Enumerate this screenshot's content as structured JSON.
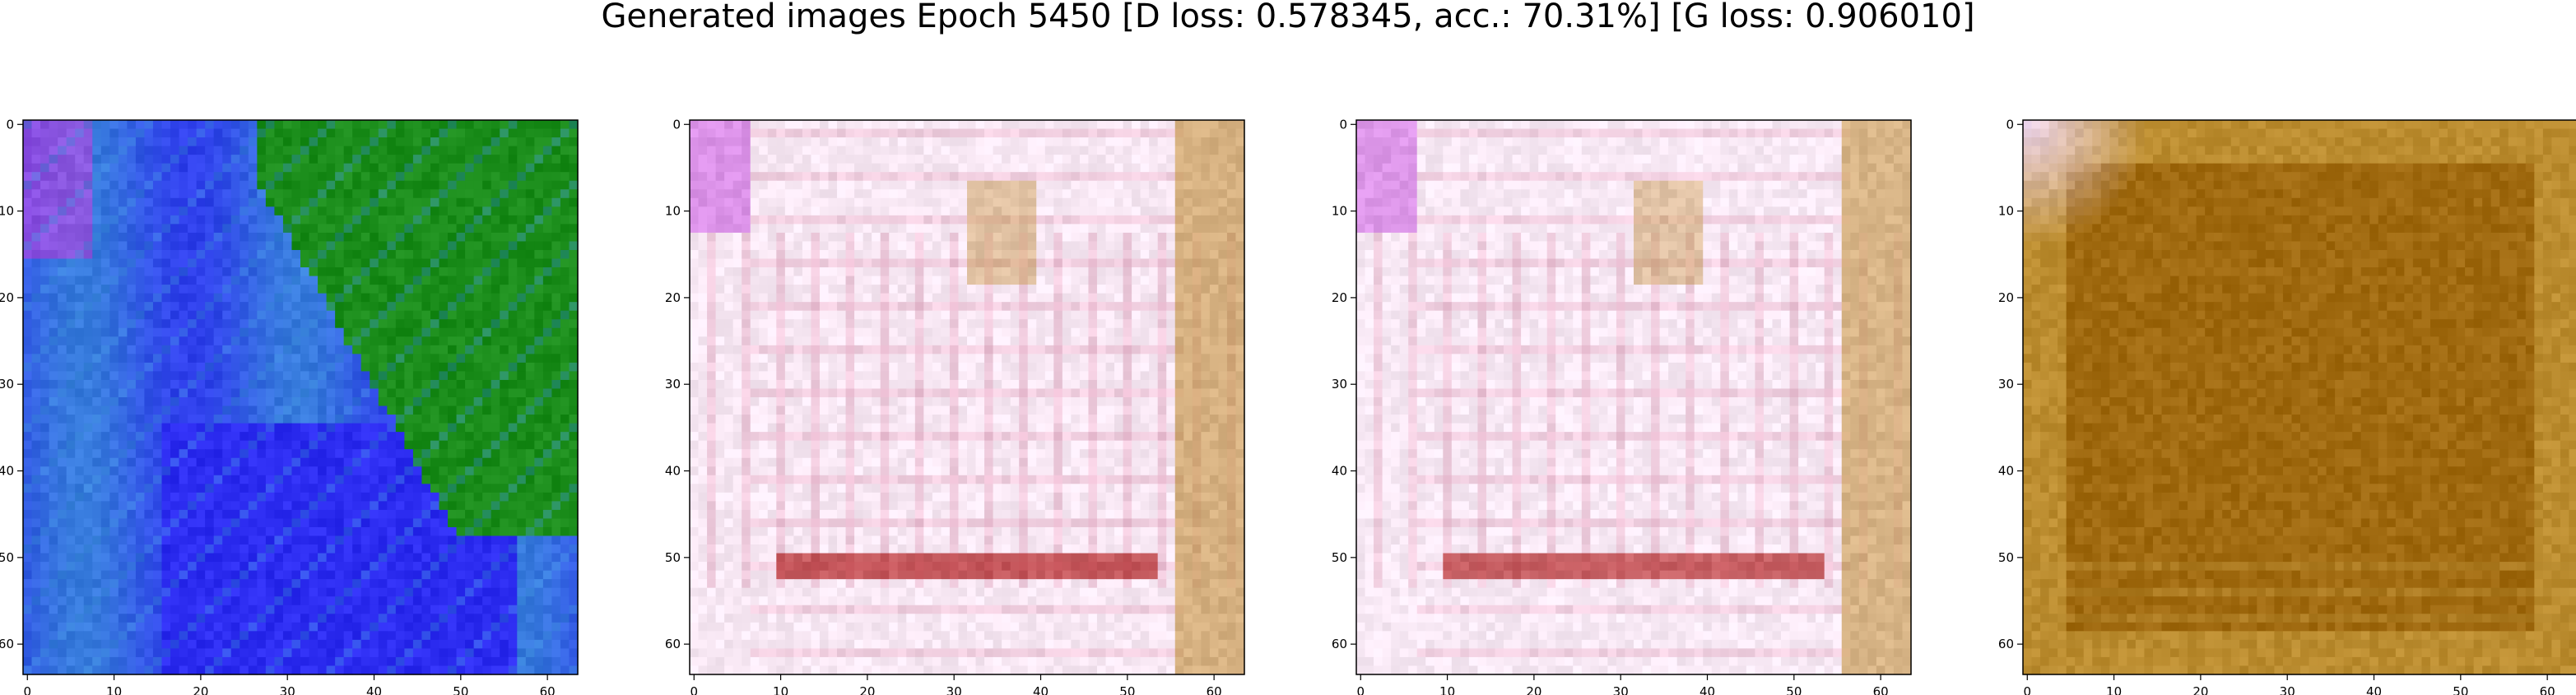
{
  "figure": {
    "title": "Generated images Epoch 5450 [D loss: 0.578345, acc.: 70.31%] [G loss: 0.906010]"
  },
  "chart_data": [
    {
      "type": "heatmap",
      "image_shape": [
        64,
        64
      ],
      "xlim": [
        -0.5,
        63.5
      ],
      "ylim": [
        63.5,
        -0.5
      ],
      "y_inverted": true,
      "x_ticks": [
        0,
        10,
        20,
        30,
        40,
        50,
        60
      ],
      "y_ticks": [
        0,
        10,
        20,
        30,
        40,
        50,
        60
      ],
      "grid": false,
      "dominant_colors": [
        "#2c2cf0",
        "#1a8c1a",
        "#3a8fd8",
        "#c040e0"
      ]
    },
    {
      "type": "heatmap",
      "image_shape": [
        64,
        64
      ],
      "xlim": [
        -0.5,
        63.5
      ],
      "ylim": [
        63.5,
        -0.5
      ],
      "y_inverted": true,
      "x_ticks": [
        0,
        10,
        20,
        30,
        40,
        50,
        60
      ],
      "y_ticks": [
        0,
        10,
        20,
        30,
        40,
        50,
        60
      ],
      "grid": false,
      "dominant_colors": [
        "#f8e8f4",
        "#e8b0c8",
        "#c89a50",
        "#b02020"
      ]
    },
    {
      "type": "heatmap",
      "image_shape": [
        64,
        64
      ],
      "xlim": [
        -0.5,
        63.5
      ],
      "ylim": [
        63.5,
        -0.5
      ],
      "y_inverted": true,
      "x_ticks": [
        0,
        10,
        20,
        30,
        40,
        50,
        60
      ],
      "y_ticks": [
        0,
        10,
        20,
        30,
        40,
        50,
        60
      ],
      "grid": false,
      "dominant_colors": [
        "#f8e8f4",
        "#e8b0c8",
        "#c89a50",
        "#b02020"
      ]
    },
    {
      "type": "heatmap",
      "image_shape": [
        64,
        64
      ],
      "xlim": [
        -0.5,
        63.5
      ],
      "ylim": [
        63.5,
        -0.5
      ],
      "y_inverted": true,
      "x_ticks": [
        0,
        10,
        20,
        30,
        40,
        50,
        60
      ],
      "y_ticks": [
        0,
        10,
        20,
        30,
        40,
        50,
        60
      ],
      "grid": false,
      "dominant_colors": [
        "#a06a10",
        "#b88a30",
        "#f0d8f0",
        "#d8b050"
      ]
    }
  ]
}
